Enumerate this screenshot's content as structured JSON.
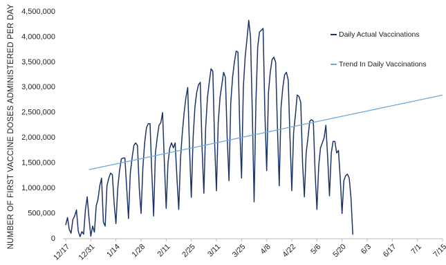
{
  "chart_data": {
    "type": "line",
    "y_label": "NUMBER OF FIRST VACCINE DOSES ADMINISTERED PER DAY",
    "categories": [
      "12/17",
      null,
      null,
      null,
      null,
      null,
      null,
      null,
      null,
      null,
      null,
      null,
      null,
      null,
      "12/31",
      null,
      null,
      null,
      null,
      null,
      null,
      null,
      null,
      null,
      null,
      null,
      null,
      null,
      "1/14",
      null,
      null,
      null,
      null,
      null,
      null,
      null,
      null,
      null,
      null,
      null,
      null,
      null,
      "1/28",
      null,
      null,
      null,
      null,
      null,
      null,
      null,
      null,
      null,
      null,
      null,
      null,
      null,
      "2/11",
      null,
      null,
      null,
      null,
      null,
      null,
      null,
      null,
      null,
      null,
      null,
      null,
      null,
      "2/25",
      null,
      null,
      null,
      null,
      null,
      null,
      null,
      null,
      null,
      null,
      null,
      null,
      null,
      "3/11",
      null,
      null,
      null,
      null,
      null,
      null,
      null,
      null,
      null,
      null,
      null,
      null,
      null,
      "3/25",
      null,
      null,
      null,
      null,
      null,
      null,
      null,
      null,
      null,
      null,
      null,
      null,
      null,
      "4/8",
      null,
      null,
      null,
      null,
      null,
      null,
      null,
      null,
      null,
      null,
      null,
      null,
      null,
      "4/22",
      null,
      null,
      null,
      null,
      null,
      null,
      null,
      null,
      null,
      null,
      null,
      null,
      null,
      "5/6",
      null,
      null,
      null,
      null,
      null,
      null,
      null,
      null,
      null,
      null,
      null,
      null,
      null,
      "5/20",
      null,
      null,
      null,
      null,
      null,
      null,
      null,
      null,
      null,
      null,
      null,
      null,
      null,
      "6/3",
      null,
      null,
      null,
      null,
      null,
      null,
      null,
      null,
      null,
      null,
      null,
      null,
      null,
      "6/17",
      null,
      null,
      null,
      null,
      null,
      null,
      null,
      null,
      null,
      null,
      null,
      null,
      null,
      "7/1",
      null,
      null,
      null,
      null,
      null,
      null,
      null,
      null,
      null,
      null,
      null,
      null,
      null,
      "7/15"
    ],
    "series": [
      {
        "name": "Daily Actual Vaccinations",
        "color": "#1b3468",
        "values": [
          270000,
          420000,
          180000,
          110000,
          380000,
          450000,
          570000,
          150000,
          40000,
          140000,
          90000,
          580000,
          830000,
          400000,
          50000,
          250000,
          130000,
          650000,
          780000,
          1050000,
          1200000,
          330000,
          250000,
          1050000,
          1200000,
          1300000,
          1270000,
          700000,
          300000,
          1000000,
          1350000,
          1580000,
          1600000,
          1600000,
          1000000,
          400000,
          1300000,
          1600000,
          1850000,
          1900000,
          1850000,
          1000000,
          500000,
          1400000,
          1900000,
          2200000,
          2280000,
          2280000,
          1300000,
          450000,
          1700000,
          2000000,
          2250000,
          2300000,
          2500000,
          1500000,
          600000,
          1500000,
          1800000,
          1900000,
          1800000,
          1900000,
          1200000,
          580000,
          1600000,
          2100000,
          2500000,
          2800000,
          3000000,
          1800000,
          820000,
          2000000,
          2600000,
          2900000,
          3050000,
          3100000,
          1800000,
          900000,
          2200000,
          2800000,
          3100000,
          3370000,
          3320000,
          1900000,
          950000,
          2300000,
          2800000,
          3050000,
          3300000,
          3200000,
          2000000,
          1150000,
          2700000,
          3200000,
          3500000,
          3720000,
          3700000,
          2200000,
          1200000,
          3000000,
          3600000,
          3950000,
          4330000,
          4000000,
          2500000,
          730000,
          2700000,
          3800000,
          4100000,
          4130000,
          4170000,
          2500000,
          1350000,
          2900000,
          3300000,
          3550000,
          3600000,
          3500000,
          2200000,
          1050000,
          2600000,
          3000000,
          3250000,
          3300000,
          3150000,
          2000000,
          950000,
          2100000,
          2450000,
          2850000,
          2820000,
          2700000,
          1500000,
          830000,
          1700000,
          2000000,
          2330000,
          2360000,
          2330000,
          1300000,
          580000,
          1450000,
          1800000,
          1900000,
          2000000,
          2250000,
          1600000,
          850000,
          1700000,
          1930000,
          1930000,
          1700000,
          1750000,
          1200000,
          500000,
          1150000,
          1250000,
          1280000,
          1200000,
          800000,
          80000,
          null,
          null,
          null,
          null,
          null,
          null,
          null,
          null,
          null,
          null,
          null,
          null,
          null,
          null,
          null,
          null,
          null,
          null,
          null,
          null,
          null,
          null,
          null,
          null,
          null,
          null,
          null,
          null,
          null,
          null,
          null,
          null,
          null,
          null,
          null,
          null,
          null,
          null,
          null,
          null,
          null,
          null,
          null,
          null,
          null,
          null,
          null,
          null,
          null,
          null
        ]
      },
      {
        "name": "Trend In Daily Vaccinations",
        "color": "#6fa8dc",
        "values": [
          null,
          null,
          null,
          null,
          null,
          null,
          null,
          null,
          null,
          null,
          null,
          null,
          null,
          1370000,
          1377500,
          1385000,
          1392500,
          1400000,
          1407500,
          1415000,
          1422500,
          1430000,
          1437500,
          1445000,
          1452500,
          1460000,
          1467500,
          1475000,
          1482500,
          1490000,
          1497500,
          1505000,
          1512500,
          1520000,
          1527500,
          1535000,
          1542500,
          1550000,
          1557500,
          1565000,
          1572500,
          1580000,
          1587500,
          1595000,
          1602500,
          1610000,
          1617500,
          1625000,
          1632500,
          1640000,
          1647500,
          1655000,
          1662500,
          1670000,
          1677500,
          1685000,
          1692500,
          1700000,
          1707500,
          1715000,
          1722500,
          1730000,
          1737500,
          1745000,
          1752500,
          1760000,
          1767500,
          1775000,
          1782500,
          1790000,
          1797500,
          1805000,
          1812500,
          1820000,
          1827500,
          1835000,
          1842500,
          1850000,
          1857500,
          1865000,
          1872500,
          1880000,
          1887500,
          1895000,
          1902500,
          1910000,
          1917500,
          1925000,
          1932500,
          1940000,
          1947500,
          1955000,
          1962500,
          1970000,
          1977500,
          1985000,
          1992500,
          2000000,
          2007500,
          2015000,
          2022500,
          2030000,
          2037500,
          2045000,
          2052500,
          2060000,
          2067500,
          2075000,
          2082500,
          2090000,
          2097500,
          2105000,
          2112500,
          2120000,
          2127500,
          2135000,
          2142500,
          2150000,
          2157500,
          2165000,
          2172500,
          2180000,
          2187500,
          2195000,
          2202500,
          2210000,
          2217500,
          2225000,
          2232500,
          2240000,
          2247500,
          2255000,
          2262500,
          2270000,
          2277500,
          2285000,
          2292500,
          2300000,
          2307500,
          2315000,
          2322500,
          2330000,
          2337500,
          2345000,
          2352500,
          2360000,
          2367500,
          2375000,
          2382500,
          2390000,
          2397500,
          2405000,
          2412500,
          2420000,
          2427500,
          2435000,
          2442500,
          2450000,
          2457500,
          2465000,
          2472500,
          2480000,
          2487500,
          2495000,
          2502500,
          2510000,
          2517500,
          2525000,
          2532500,
          2540000,
          2547500,
          2555000,
          2562500,
          2570000,
          2577500,
          2585000,
          2592500,
          2600000,
          2607500,
          2615000,
          2622500,
          2630000,
          2637500,
          2645000,
          2652500,
          2660000,
          2667500,
          2675000,
          2682500,
          2690000,
          2697500,
          2705000,
          2712500,
          2720000,
          2727500,
          2735000,
          2742500,
          2750000,
          2757500,
          2765000,
          2772500,
          2780000,
          2787500,
          2795000,
          2802500,
          2810000,
          2817500,
          2825000,
          2832500,
          2840000,
          2847500
        ]
      }
    ],
    "ylim": [
      0,
      4500000
    ],
    "yticks": [
      0,
      {
        "value": 500000,
        "label": "500,000"
      },
      {
        "value": 1000000,
        "label": "1,000,000"
      },
      {
        "value": 1500000,
        "label": "1,500,000"
      },
      {
        "value": 2000000,
        "label": "2,000,000"
      },
      {
        "value": 2500000,
        "label": "2,500,000"
      },
      {
        "value": 3000000,
        "label": "3,000,000"
      },
      {
        "value": 3500000,
        "label": "3,500,000"
      },
      {
        "value": 4000000,
        "label": "4,000,000"
      },
      {
        "value": 4500000,
        "label": "4,500,000"
      }
    ],
    "grid": false,
    "legend": "top-right"
  }
}
